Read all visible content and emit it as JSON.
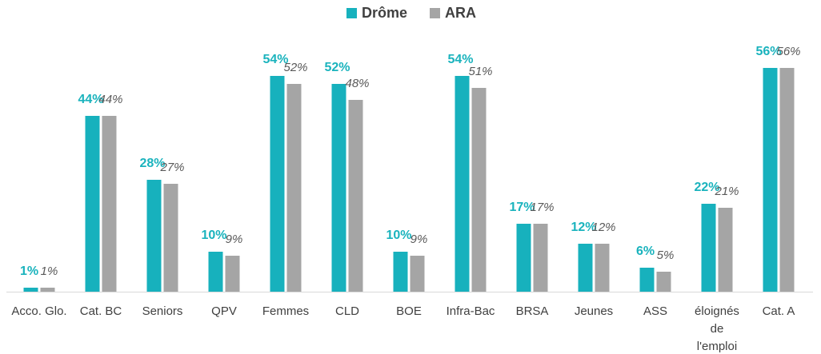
{
  "chart_data": {
    "type": "bar",
    "categories": [
      "Acco. Glo.",
      "Cat. BC",
      "Seniors",
      "QPV",
      "Femmes",
      "CLD",
      "BOE",
      "Infra-Bac",
      "BRSA",
      "Jeunes",
      "ASS",
      "éloignés de l'emploi",
      "Cat. A"
    ],
    "series": [
      {
        "name": "Drôme",
        "color": "#17b1bd",
        "values": [
          1,
          44,
          28,
          10,
          54,
          52,
          10,
          54,
          17,
          12,
          6,
          22,
          56
        ],
        "value_labels": [
          "1%",
          "44%",
          "28%",
          "10%",
          "54%",
          "52%",
          "10%",
          "54%",
          "17%",
          "12%",
          "6%",
          "22%",
          "56%"
        ]
      },
      {
        "name": "ARA",
        "color": "#a5a5a5",
        "values": [
          1,
          44,
          27,
          9,
          52,
          48,
          9,
          51,
          17,
          12,
          5,
          21,
          56
        ],
        "value_labels": [
          "1%",
          "44%",
          "27%",
          "9%",
          "52%",
          "48%",
          "9%",
          "51%",
          "17%",
          "12%",
          "5%",
          "21%",
          "56%"
        ]
      }
    ],
    "legend": "top"
  }
}
